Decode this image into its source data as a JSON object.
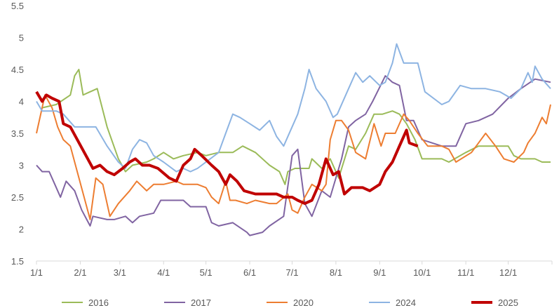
{
  "chart_data": {
    "type": "line",
    "title": "",
    "xlabel": "",
    "ylabel": "",
    "ylim": [
      1.5,
      5.5
    ],
    "yticks": [
      "1.5",
      "2",
      "2.5",
      "3",
      "3.5",
      "4",
      "4.5",
      "5",
      "5.5"
    ],
    "xticks": [
      "1/1",
      "2/1",
      "3/1",
      "4/1",
      "5/1",
      "6/1",
      "7/1",
      "8/1",
      "9/1",
      "10/1",
      "11/1",
      "12/1"
    ],
    "grid": false,
    "legend": "bottom",
    "series": [
      {
        "name": "2016",
        "color": "#9BBB59",
        "width": 2,
        "points": [
          [
            "1/5",
            3.9
          ],
          [
            "1/15",
            3.95
          ],
          [
            "1/25",
            4.1
          ],
          [
            "1/28",
            4.4
          ],
          [
            "1/31",
            4.5
          ],
          [
            "2/3",
            4.1
          ],
          [
            "2/8",
            4.15
          ],
          [
            "2/13",
            4.2
          ],
          [
            "2/20",
            3.6
          ],
          [
            "2/28",
            3.1
          ],
          [
            "3/5",
            2.9
          ],
          [
            "3/10",
            3.0
          ],
          [
            "3/20",
            3.05
          ],
          [
            "3/25",
            3.1
          ],
          [
            "4/1",
            3.2
          ],
          [
            "4/8",
            3.1
          ],
          [
            "4/15",
            3.15
          ],
          [
            "4/25",
            3.2
          ],
          [
            "5/1",
            3.15
          ],
          [
            "5/10",
            3.2
          ],
          [
            "5/20",
            3.2
          ],
          [
            "5/27",
            3.3
          ],
          [
            "6/5",
            3.2
          ],
          [
            "6/15",
            3.0
          ],
          [
            "6/22",
            2.9
          ],
          [
            "6/26",
            2.7
          ],
          [
            "6/28",
            2.9
          ],
          [
            "7/3",
            2.95
          ],
          [
            "7/13",
            2.95
          ],
          [
            "7/15",
            3.1
          ],
          [
            "7/22",
            2.95
          ],
          [
            "7/28",
            3.1
          ],
          [
            "8/3",
            2.8
          ],
          [
            "8/10",
            3.3
          ],
          [
            "8/15",
            3.25
          ],
          [
            "8/22",
            3.5
          ],
          [
            "8/28",
            3.8
          ],
          [
            "9/3",
            3.8
          ],
          [
            "9/10",
            3.85
          ],
          [
            "9/15",
            3.8
          ],
          [
            "9/20",
            3.65
          ],
          [
            "9/26",
            3.4
          ],
          [
            "10/1",
            3.1
          ],
          [
            "10/15",
            3.1
          ],
          [
            "10/20",
            3.05
          ],
          [
            "11/1",
            3.2
          ],
          [
            "11/10",
            3.3
          ],
          [
            "11/20",
            3.3
          ],
          [
            "12/1",
            3.3
          ],
          [
            "12/5",
            3.15
          ],
          [
            "12/10",
            3.1
          ],
          [
            "12/20",
            3.1
          ],
          [
            "12/25",
            3.05
          ],
          [
            "12/31",
            3.05
          ]
        ]
      },
      {
        "name": "2017",
        "color": "#8064A2",
        "width": 2,
        "points": [
          [
            "1/1",
            3.0
          ],
          [
            "1/5",
            2.9
          ],
          [
            "1/10",
            2.9
          ],
          [
            "1/14",
            2.7
          ],
          [
            "1/18",
            2.5
          ],
          [
            "1/22",
            2.75
          ],
          [
            "1/28",
            2.6
          ],
          [
            "2/2",
            2.3
          ],
          [
            "2/8",
            2.05
          ],
          [
            "2/10",
            2.2
          ],
          [
            "2/20",
            2.15
          ],
          [
            "2/25",
            2.15
          ],
          [
            "3/5",
            2.2
          ],
          [
            "3/10",
            2.1
          ],
          [
            "3/15",
            2.2
          ],
          [
            "3/25",
            2.25
          ],
          [
            "3/30",
            2.45
          ],
          [
            "4/15",
            2.45
          ],
          [
            "4/20",
            2.35
          ],
          [
            "5/1",
            2.35
          ],
          [
            "5/5",
            2.1
          ],
          [
            "5/10",
            2.05
          ],
          [
            "5/20",
            2.1
          ],
          [
            "5/30",
            1.95
          ],
          [
            "6/1",
            1.9
          ],
          [
            "6/10",
            1.95
          ],
          [
            "6/15",
            2.05
          ],
          [
            "6/25",
            2.2
          ],
          [
            "7/1",
            3.15
          ],
          [
            "7/5",
            3.25
          ],
          [
            "7/10",
            2.4
          ],
          [
            "7/15",
            2.2
          ],
          [
            "7/22",
            2.6
          ],
          [
            "7/28",
            2.5
          ],
          [
            "8/5",
            3.1
          ],
          [
            "8/10",
            3.6
          ],
          [
            "8/15",
            3.7
          ],
          [
            "8/22",
            3.8
          ],
          [
            "8/27",
            4.0
          ],
          [
            "9/5",
            4.4
          ],
          [
            "9/10",
            4.3
          ],
          [
            "9/15",
            4.25
          ],
          [
            "9/20",
            3.7
          ],
          [
            "9/25",
            3.7
          ],
          [
            "10/1",
            3.4
          ],
          [
            "10/15",
            3.3
          ],
          [
            "10/25",
            3.3
          ],
          [
            "11/1",
            3.65
          ],
          [
            "11/10",
            3.7
          ],
          [
            "11/20",
            3.8
          ],
          [
            "12/1",
            4.05
          ],
          [
            "12/10",
            4.2
          ],
          [
            "12/20",
            4.35
          ],
          [
            "12/31",
            4.3
          ]
        ]
      },
      {
        "name": "2020",
        "color": "#ED7D31",
        "width": 2,
        "points": [
          [
            "1/1",
            3.5
          ],
          [
            "1/7",
            4.1
          ],
          [
            "1/12",
            3.9
          ],
          [
            "1/16",
            3.6
          ],
          [
            "1/20",
            3.4
          ],
          [
            "1/25",
            3.3
          ],
          [
            "2/8",
            2.15
          ],
          [
            "2/12",
            2.8
          ],
          [
            "2/17",
            2.7
          ],
          [
            "2/22",
            2.2
          ],
          [
            "2/28",
            2.4
          ],
          [
            "3/8",
            2.6
          ],
          [
            "3/13",
            2.75
          ],
          [
            "3/20",
            2.6
          ],
          [
            "3/25",
            2.7
          ],
          [
            "4/1",
            2.7
          ],
          [
            "4/10",
            2.75
          ],
          [
            "4/15",
            2.7
          ],
          [
            "4/25",
            2.7
          ],
          [
            "5/1",
            2.65
          ],
          [
            "5/5",
            2.5
          ],
          [
            "5/10",
            2.4
          ],
          [
            "5/15",
            2.75
          ],
          [
            "5/18",
            2.45
          ],
          [
            "5/22",
            2.45
          ],
          [
            "5/30",
            2.4
          ],
          [
            "6/5",
            2.45
          ],
          [
            "6/15",
            2.4
          ],
          [
            "6/20",
            2.4
          ],
          [
            "6/28",
            2.55
          ],
          [
            "7/1",
            2.3
          ],
          [
            "7/5",
            2.25
          ],
          [
            "7/10",
            2.5
          ],
          [
            "7/15",
            2.7
          ],
          [
            "7/22",
            2.6
          ],
          [
            "7/25",
            2.7
          ],
          [
            "7/28",
            3.4
          ],
          [
            "8/1",
            3.7
          ],
          [
            "8/5",
            3.7
          ],
          [
            "8/10",
            3.55
          ],
          [
            "8/15",
            3.2
          ],
          [
            "8/22",
            3.1
          ],
          [
            "8/28",
            3.65
          ],
          [
            "9/2",
            3.3
          ],
          [
            "9/5",
            3.5
          ],
          [
            "9/12",
            3.5
          ],
          [
            "9/18",
            3.8
          ],
          [
            "9/22",
            3.7
          ],
          [
            "9/28",
            3.5
          ],
          [
            "10/5",
            3.3
          ],
          [
            "10/15",
            3.3
          ],
          [
            "10/20",
            3.25
          ],
          [
            "10/25",
            3.05
          ],
          [
            "11/5",
            3.2
          ],
          [
            "11/10",
            3.35
          ],
          [
            "11/15",
            3.5
          ],
          [
            "11/22",
            3.3
          ],
          [
            "11/28",
            3.1
          ],
          [
            "12/5",
            3.05
          ],
          [
            "12/12",
            3.2
          ],
          [
            "12/15",
            3.35
          ],
          [
            "12/20",
            3.5
          ],
          [
            "12/25",
            3.75
          ],
          [
            "12/28",
            3.65
          ],
          [
            "12/31",
            3.95
          ]
        ]
      },
      {
        "name": "2024",
        "color": "#8DB4E2",
        "width": 2,
        "points": [
          [
            "1/1",
            4.0
          ],
          [
            "1/5",
            3.85
          ],
          [
            "1/15",
            3.85
          ],
          [
            "1/20",
            3.8
          ],
          [
            "1/28",
            3.6
          ],
          [
            "2/12",
            3.6
          ],
          [
            "2/20",
            3.3
          ],
          [
            "2/28",
            3.05
          ],
          [
            "3/5",
            2.95
          ],
          [
            "3/10",
            3.25
          ],
          [
            "3/15",
            3.4
          ],
          [
            "3/20",
            3.35
          ],
          [
            "3/25",
            3.15
          ],
          [
            "4/1",
            3.05
          ],
          [
            "4/10",
            2.9
          ],
          [
            "4/15",
            2.95
          ],
          [
            "4/20",
            2.9
          ],
          [
            "4/25",
            2.95
          ],
          [
            "5/1",
            3.05
          ],
          [
            "5/10",
            3.2
          ],
          [
            "5/15",
            3.5
          ],
          [
            "5/20",
            3.8
          ],
          [
            "5/25",
            3.75
          ],
          [
            "6/1",
            3.65
          ],
          [
            "6/8",
            3.55
          ],
          [
            "6/15",
            3.7
          ],
          [
            "6/20",
            3.45
          ],
          [
            "6/25",
            3.3
          ],
          [
            "7/5",
            3.8
          ],
          [
            "7/10",
            4.2
          ],
          [
            "7/13",
            4.5
          ],
          [
            "7/18",
            4.2
          ],
          [
            "7/25",
            4.0
          ],
          [
            "7/30",
            3.75
          ],
          [
            "8/2",
            3.8
          ],
          [
            "8/10",
            4.2
          ],
          [
            "8/15",
            4.45
          ],
          [
            "8/20",
            4.3
          ],
          [
            "8/25",
            4.4
          ],
          [
            "9/1",
            4.25
          ],
          [
            "9/5",
            4.3
          ],
          [
            "9/10",
            4.6
          ],
          [
            "9/13",
            4.9
          ],
          [
            "9/18",
            4.6
          ],
          [
            "9/28",
            4.6
          ],
          [
            "10/3",
            4.15
          ],
          [
            "10/15",
            3.95
          ],
          [
            "10/20",
            4.0
          ],
          [
            "10/28",
            4.25
          ],
          [
            "11/5",
            4.2
          ],
          [
            "11/15",
            4.2
          ],
          [
            "11/25",
            4.15
          ],
          [
            "12/3",
            4.05
          ],
          [
            "12/10",
            4.2
          ],
          [
            "12/15",
            4.45
          ],
          [
            "12/18",
            4.3
          ],
          [
            "12/20",
            4.55
          ],
          [
            "12/25",
            4.35
          ],
          [
            "12/31",
            4.2
          ]
        ]
      },
      {
        "name": "2025",
        "color": "#C00000",
        "width": 4,
        "points": [
          [
            "1/1",
            4.15
          ],
          [
            "1/5",
            4.0
          ],
          [
            "1/8",
            4.1
          ],
          [
            "1/12",
            4.05
          ],
          [
            "1/17",
            4.0
          ],
          [
            "1/20",
            3.65
          ],
          [
            "1/25",
            3.6
          ],
          [
            "2/10",
            2.95
          ],
          [
            "2/15",
            3.0
          ],
          [
            "2/20",
            2.9
          ],
          [
            "2/25",
            2.85
          ],
          [
            "3/3",
            2.95
          ],
          [
            "3/8",
            3.05
          ],
          [
            "3/12",
            3.1
          ],
          [
            "3/17",
            3.0
          ],
          [
            "3/22",
            3.0
          ],
          [
            "3/28",
            2.95
          ],
          [
            "4/5",
            2.8
          ],
          [
            "4/10",
            2.75
          ],
          [
            "4/15",
            3.0
          ],
          [
            "4/20",
            3.1
          ],
          [
            "4/23",
            3.25
          ],
          [
            "4/28",
            3.15
          ],
          [
            "5/5",
            3.0
          ],
          [
            "5/10",
            2.9
          ],
          [
            "5/15",
            2.7
          ],
          [
            "5/18",
            2.85
          ],
          [
            "5/23",
            2.75
          ],
          [
            "5/28",
            2.6
          ],
          [
            "6/5",
            2.55
          ],
          [
            "6/20",
            2.55
          ],
          [
            "6/25",
            2.5
          ],
          [
            "7/1",
            2.5
          ],
          [
            "7/5",
            2.45
          ],
          [
            "7/10",
            2.4
          ],
          [
            "7/15",
            2.45
          ],
          [
            "7/20",
            2.7
          ],
          [
            "7/25",
            3.1
          ],
          [
            "7/30",
            2.85
          ],
          [
            "8/3",
            2.9
          ],
          [
            "8/7",
            2.55
          ],
          [
            "8/12",
            2.65
          ],
          [
            "8/20",
            2.65
          ],
          [
            "8/25",
            2.6
          ],
          [
            "9/1",
            2.7
          ],
          [
            "9/5",
            2.9
          ],
          [
            "9/10",
            3.05
          ],
          [
            "9/15",
            3.3
          ],
          [
            "9/20",
            3.55
          ],
          [
            "9/22",
            3.35
          ],
          [
            "9/28",
            3.3
          ]
        ]
      }
    ]
  }
}
